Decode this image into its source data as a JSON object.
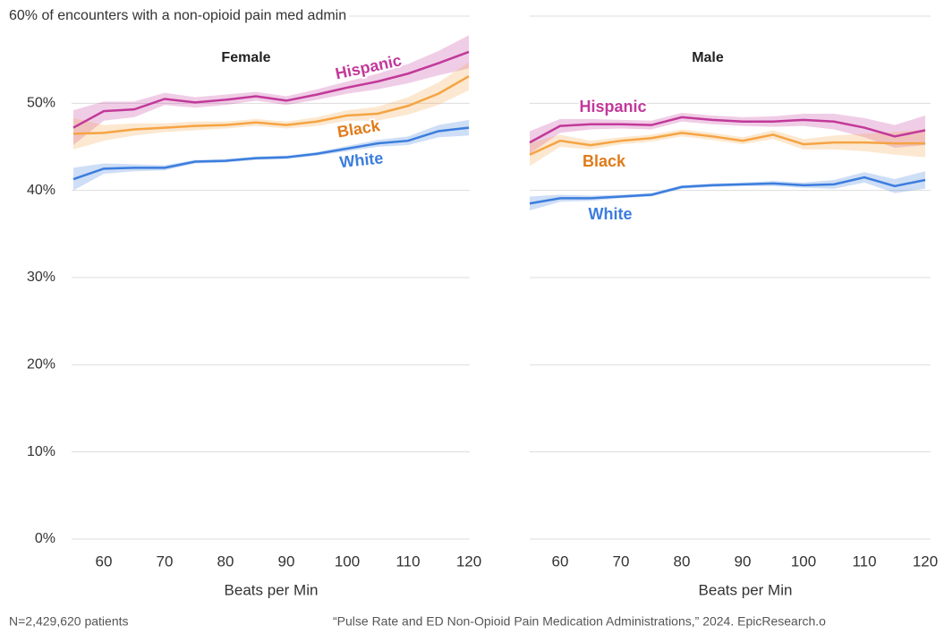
{
  "chart_data": [
    {
      "type": "line",
      "title": "Female",
      "xlabel": "Beats per Min",
      "x": [
        55,
        60,
        65,
        70,
        75,
        80,
        85,
        90,
        95,
        100,
        105,
        110,
        115,
        120
      ],
      "xlim": [
        55,
        120
      ],
      "xticks": [
        60,
        70,
        80,
        90,
        100,
        110,
        120
      ],
      "ylim": [
        0,
        60
      ],
      "yticks": [
        {
          "value": 0,
          "label": "0%"
        },
        {
          "value": 10,
          "label": "10%"
        },
        {
          "value": 20,
          "label": "20%"
        },
        {
          "value": 30,
          "label": "30%"
        },
        {
          "value": 40,
          "label": "40%"
        },
        {
          "value": 50,
          "label": "50%"
        },
        {
          "value": 60,
          "label": "60% of encounters with a non-opioid pain med admin"
        }
      ],
      "grid": true,
      "series": [
        {
          "name": "Hispanic",
          "color": "#c2399a",
          "values": [
            47.2,
            49.1,
            49.3,
            50.5,
            50.1,
            50.4,
            50.8,
            50.3,
            51.0,
            51.8,
            52.5,
            53.4,
            54.6,
            55.9
          ],
          "errors": [
            2.0,
            1.1,
            0.9,
            0.7,
            0.6,
            0.6,
            0.5,
            0.5,
            0.6,
            0.7,
            0.9,
            1.1,
            1.4,
            1.9
          ]
        },
        {
          "name": "Black",
          "color": "#f5a443",
          "values": [
            46.5,
            46.6,
            47.0,
            47.2,
            47.4,
            47.5,
            47.8,
            47.5,
            47.9,
            48.6,
            48.8,
            49.7,
            51.1,
            53.1
          ],
          "errors": [
            1.8,
            0.9,
            0.7,
            0.5,
            0.5,
            0.4,
            0.4,
            0.4,
            0.5,
            0.6,
            0.8,
            1.0,
            1.3,
            1.6
          ]
        },
        {
          "name": "White",
          "color": "#3b7ddd",
          "values": [
            41.3,
            42.5,
            42.6,
            42.6,
            43.3,
            43.4,
            43.7,
            43.8,
            44.2,
            44.8,
            45.4,
            45.7,
            46.8,
            47.2
          ],
          "errors": [
            1.3,
            0.6,
            0.4,
            0.3,
            0.2,
            0.2,
            0.2,
            0.2,
            0.2,
            0.3,
            0.4,
            0.5,
            0.7,
            0.9
          ]
        }
      ]
    },
    {
      "type": "line",
      "title": "Male",
      "xlabel": "Beats per Min",
      "x": [
        55,
        60,
        65,
        70,
        75,
        80,
        85,
        90,
        95,
        100,
        105,
        110,
        115,
        120
      ],
      "xlim": [
        55,
        120
      ],
      "xticks": [
        60,
        70,
        80,
        90,
        100,
        110,
        120
      ],
      "ylim": [
        0,
        60
      ],
      "yticks": [
        0,
        10,
        20,
        30,
        40,
        50,
        60
      ],
      "grid": true,
      "series": [
        {
          "name": "Hispanic",
          "color": "#c2399a",
          "values": [
            45.5,
            47.4,
            47.6,
            47.6,
            47.5,
            48.4,
            48.1,
            47.9,
            47.9,
            48.1,
            47.9,
            47.2,
            46.2,
            46.9
          ],
          "errors": [
            1.3,
            0.8,
            0.6,
            0.5,
            0.5,
            0.5,
            0.5,
            0.5,
            0.6,
            0.7,
            0.9,
            1.1,
            1.3,
            1.7
          ]
        },
        {
          "name": "Black",
          "color": "#f5a443",
          "values": [
            44.1,
            45.7,
            45.2,
            45.7,
            46.0,
            46.6,
            46.2,
            45.7,
            46.4,
            45.3,
            45.5,
            45.5,
            45.4,
            45.4
          ],
          "errors": [
            1.3,
            0.7,
            0.5,
            0.4,
            0.4,
            0.4,
            0.4,
            0.4,
            0.5,
            0.6,
            0.8,
            1.0,
            1.3,
            1.6
          ]
        },
        {
          "name": "White",
          "color": "#3b7ddd",
          "values": [
            38.5,
            39.1,
            39.1,
            39.3,
            39.5,
            40.4,
            40.6,
            40.7,
            40.8,
            40.6,
            40.7,
            41.5,
            40.5,
            41.2
          ],
          "errors": [
            0.8,
            0.4,
            0.3,
            0.2,
            0.2,
            0.2,
            0.2,
            0.2,
            0.3,
            0.3,
            0.5,
            0.6,
            0.8,
            1.0
          ]
        }
      ]
    }
  ],
  "footer": {
    "note": "N=2,429,620 patients",
    "source": "“Pulse Rate and ED Non-Opioid Pain Medication Administrations,” 2024. EpicResearch.o"
  }
}
